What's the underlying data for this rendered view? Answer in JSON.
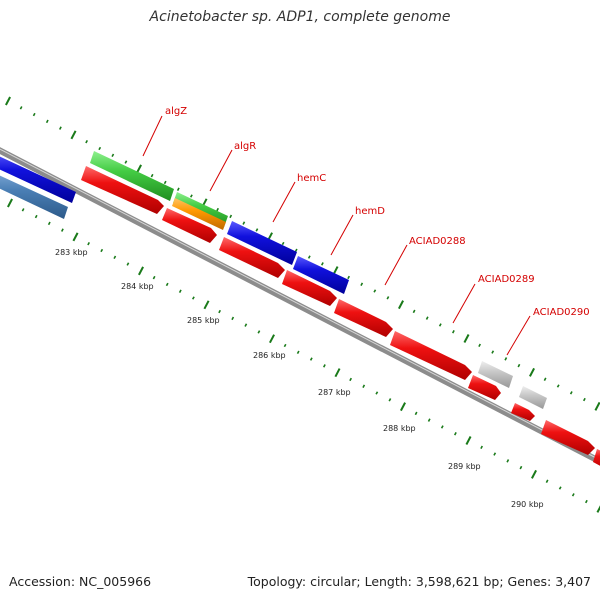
{
  "header": {
    "title": "Acinetobacter sp. ADP1, complete genome"
  },
  "footer": {
    "accession": "Accession: NC_005966",
    "topology": "Topology: circular; Length: 3,598,621 bp; Genes: 3,407"
  },
  "scale_labels": [
    "283 kbp",
    "284 kbp",
    "285 kbp",
    "286 kbp",
    "287 kbp",
    "288 kbp",
    "289 kbp",
    "290 kbp"
  ],
  "gene_labels": [
    "algZ",
    "algR",
    "hemC",
    "hemD",
    "ACIAD0288",
    "ACIAD0289",
    "ACIAD0290"
  ],
  "colors": {
    "label": "#d40000",
    "tick": "#1a7a1a",
    "backbone": "#8c8c8c",
    "red_feature": "#ee1111",
    "blue_feature": "#1111dd",
    "steel_feature": "#4a7fb5",
    "green_feature": "#44cc44",
    "orange_feature": "#ff9900",
    "gray_feature": "#c8c8c8"
  }
}
